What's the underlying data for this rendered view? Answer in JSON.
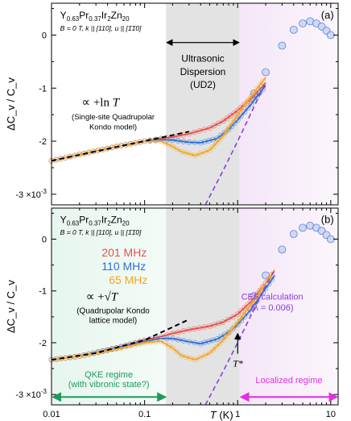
{
  "chart_data": [
    {
      "panel_label": "(a)",
      "type": "line",
      "material": {
        "base": "Y",
        "sub1": "0.63",
        "mid": "Pr",
        "sub2": "0.37",
        "end": "Ir",
        "sub3": "2",
        "tail": "Zn",
        "sub4": "20"
      },
      "conditions": "B = 0 T, k || [110], u || [1̄1̄0]",
      "ylabel": "ΔC_v / C_v",
      "y_scale_note": "×10⁻³",
      "x_scale": "log",
      "xlim": [
        0.01,
        12
      ],
      "ylim": [
        -3.2,
        0.6
      ],
      "yticks": [
        -3,
        -2,
        -1,
        0
      ],
      "ytick_labels": [
        "-3 ×10",
        "-2",
        "-1",
        "0"
      ],
      "ytick_exponent": "-3",
      "shaded_regions": [
        {
          "name": "ultrasonic-dispersion",
          "x_range": [
            0.17,
            1.05
          ],
          "color": "#e3e3e3"
        },
        {
          "name": "localized",
          "x_range": [
            1.05,
            12
          ],
          "color": "#f4e6f7"
        }
      ],
      "annotations": {
        "dispersion_title": [
          "Ultrasonic",
          "Dispersion",
          "(UD2)"
        ],
        "fit_formula_prefix": "∝ +ln ",
        "fit_formula_var": "T",
        "fit_note": [
          "(Single-site Quadrupolar",
          "Kondo model)"
        ]
      },
      "series": [
        {
          "color": "#e8514c",
          "role": "201 MHz",
          "x": [
            0.01,
            0.02,
            0.05,
            0.1,
            0.15,
            0.2,
            0.3,
            0.5,
            0.7,
            1.0,
            1.4,
            2.0
          ],
          "y": [
            -2.37,
            -2.25,
            -2.1,
            -2.0,
            -1.95,
            -1.92,
            -1.86,
            -1.75,
            -1.62,
            -1.42,
            -1.2,
            -0.9
          ]
        },
        {
          "color": "#2f6fd8",
          "role": "110 MHz",
          "x": [
            0.01,
            0.02,
            0.05,
            0.1,
            0.15,
            0.2,
            0.3,
            0.4,
            0.6,
            0.8,
            1.0,
            1.4,
            2.0
          ],
          "y": [
            -2.37,
            -2.25,
            -2.1,
            -2.0,
            -1.97,
            -1.98,
            -2.02,
            -2.03,
            -1.95,
            -1.78,
            -1.6,
            -1.3,
            -0.95
          ]
        },
        {
          "color": "#f6a623",
          "role": "65 MHz",
          "x": [
            0.01,
            0.02,
            0.05,
            0.1,
            0.15,
            0.2,
            0.25,
            0.35,
            0.5,
            0.7,
            1.0,
            1.4,
            2.0
          ],
          "y": [
            -2.37,
            -2.25,
            -2.1,
            -2.0,
            -2.0,
            -2.1,
            -2.2,
            -2.27,
            -2.17,
            -1.9,
            -1.5,
            -1.15,
            -0.8
          ]
        }
      ],
      "cef": {
        "color": "#4a6fd8",
        "x": [
          1.5,
          2,
          3,
          4,
          5,
          6,
          7,
          8,
          9,
          10
        ],
        "y": [
          -1.1,
          -0.7,
          -0.2,
          0.1,
          0.22,
          0.26,
          0.22,
          0.16,
          0.08,
          0.0
        ]
      },
      "fit_line": {
        "color": "#000000",
        "x": [
          0.01,
          0.3
        ],
        "y": [
          -2.37,
          -1.82
        ]
      },
      "cef_calc_line": {
        "color": "#8a3fd6",
        "x": [
          0.45,
          0.7,
          1.0,
          1.5,
          2.0
        ],
        "y": [
          -3.2,
          -2.55,
          -2.0,
          -1.35,
          -0.9
        ]
      }
    },
    {
      "panel_label": "(b)",
      "type": "line",
      "material": {
        "base": "Y",
        "sub1": "0.63",
        "mid": "Pr",
        "sub2": "0.37",
        "end": "Ir",
        "sub3": "2",
        "tail": "Zn",
        "sub4": "20"
      },
      "conditions": "B = 0 T, k || [110], u || [1̄1̄0]",
      "ylabel": "ΔC_v / C_v",
      "x_scale": "log",
      "xlabel_var": "T",
      "xlabel_unit": " (K)",
      "xlim": [
        0.01,
        12
      ],
      "ylim": [
        -3.2,
        0.6
      ],
      "xticks": [
        0.01,
        0.1,
        1,
        10
      ],
      "xtick_labels": [
        "0.01",
        "0.1",
        "1",
        "10"
      ],
      "yticks": [
        -3,
        -2,
        -1,
        0
      ],
      "ytick_labels": [
        "-3 ×10",
        "-2",
        "-1",
        "0"
      ],
      "ytick_exponent": "-3",
      "shaded_regions": [
        {
          "name": "qke",
          "x_range": [
            0.01,
            0.17
          ],
          "color": "#e6f6ee"
        },
        {
          "name": "ultrasonic-dispersion",
          "x_range": [
            0.17,
            1.05
          ],
          "color": "#e3e3e3"
        },
        {
          "name": "localized",
          "x_range": [
            1.05,
            12
          ],
          "color": "#f4e6f7"
        }
      ],
      "legend": [
        {
          "label": "201 MHz",
          "color": "#e8514c"
        },
        {
          "label": "110 MHz",
          "color": "#2f6fd8"
        },
        {
          "label": "65 MHz",
          "color": "#f6a623"
        }
      ],
      "annotations": {
        "fit_formula_prefix": "∝ +",
        "fit_formula_var": "√T",
        "fit_note": [
          "(Quadrupolar Kondo",
          "lattice model)"
        ],
        "cef_note": [
          "CEF calculation",
          "(λ = 0.006)"
        ],
        "tstar": "T*",
        "qke_regime": [
          "QKE regime",
          "(with vibronic state?)"
        ],
        "localized_regime": "Localized regime"
      },
      "series": [
        {
          "label": "201 MHz",
          "color": "#e8514c",
          "x": [
            0.01,
            0.02,
            0.05,
            0.1,
            0.15,
            0.2,
            0.3,
            0.5,
            0.7,
            1.0,
            1.4,
            2.0,
            2.5
          ],
          "y": [
            -2.33,
            -2.26,
            -2.1,
            -1.95,
            -1.88,
            -1.82,
            -1.75,
            -1.68,
            -1.6,
            -1.45,
            -1.2,
            -0.85,
            -0.6
          ]
        },
        {
          "label": "110 MHz",
          "color": "#2f6fd8",
          "x": [
            0.01,
            0.02,
            0.05,
            0.1,
            0.15,
            0.2,
            0.3,
            0.4,
            0.6,
            0.8,
            1.0,
            1.4,
            2.0,
            2.5
          ],
          "y": [
            -2.33,
            -2.26,
            -2.1,
            -1.97,
            -1.92,
            -1.92,
            -1.98,
            -2.02,
            -1.93,
            -1.8,
            -1.65,
            -1.35,
            -0.95,
            -0.7
          ]
        },
        {
          "label": "65 MHz",
          "color": "#f6a623",
          "x": [
            0.01,
            0.02,
            0.05,
            0.1,
            0.15,
            0.2,
            0.25,
            0.35,
            0.5,
            0.7,
            1.0,
            1.4,
            2.0,
            2.5
          ],
          "y": [
            -2.33,
            -2.26,
            -2.12,
            -2.0,
            -1.97,
            -2.1,
            -2.25,
            -2.33,
            -2.2,
            -1.95,
            -1.6,
            -1.25,
            -0.85,
            -0.6
          ]
        }
      ],
      "cef": {
        "color": "#4a6fd8",
        "x": [
          1.5,
          2,
          3,
          4,
          5,
          6,
          7,
          8,
          9,
          10
        ],
        "y": [
          -1.1,
          -0.7,
          -0.2,
          0.1,
          0.22,
          0.26,
          0.22,
          0.16,
          0.08,
          0.0
        ]
      },
      "fit_line": {
        "color": "#000000",
        "x": [
          0.01,
          0.03,
          0.1,
          0.3
        ],
        "y": [
          -2.33,
          -2.2,
          -1.95,
          -1.55
        ]
      },
      "cef_calc_line": {
        "color": "#8a3fd6",
        "x": [
          0.45,
          0.7,
          1.0,
          1.5,
          2.0,
          2.5
        ],
        "y": [
          -3.2,
          -2.55,
          -2.0,
          -1.35,
          -0.9,
          -0.6
        ]
      }
    }
  ]
}
